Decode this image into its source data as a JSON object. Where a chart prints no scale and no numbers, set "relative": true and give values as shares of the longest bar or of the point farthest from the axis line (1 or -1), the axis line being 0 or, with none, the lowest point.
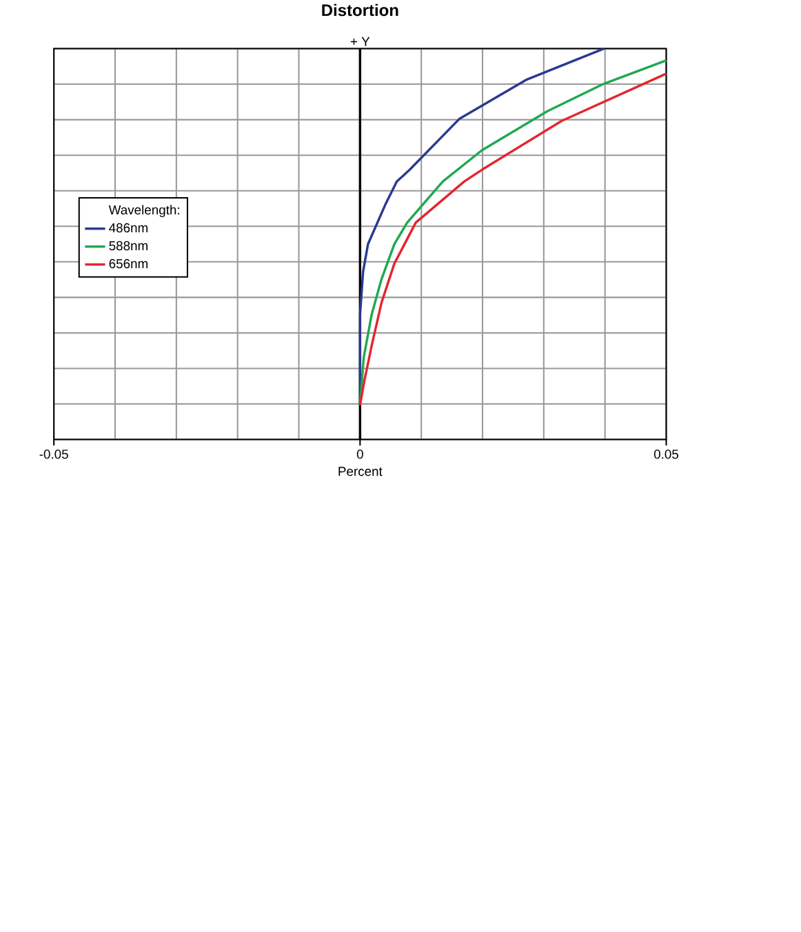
{
  "chart_data": {
    "type": "line",
    "title": "Distortion",
    "xlabel": "Percent",
    "ylabel": "+ Y",
    "legend_title": "Wavelength:",
    "relative": true,
    "xlim": [
      -0.05,
      0.05
    ],
    "xticks": [
      -0.05,
      0,
      0.05
    ],
    "grid": true,
    "legend": "left",
    "marker": "none",
    "line_style": "solid",
    "series": [
      {
        "name": "486nm",
        "color": "#2b3990",
        "x": [
          0,
          0,
          0.0005,
          0.0013,
          0.0041,
          0.006,
          0.0081,
          0.0162,
          0.0271,
          0.0398
        ],
        "values": [
          0.088,
          0.32,
          0.43,
          0.5,
          0.6,
          0.66,
          0.69,
          0.82,
          0.92,
          1
        ]
      },
      {
        "name": "588nm",
        "color": "#1fa84f",
        "x": [
          0,
          0.0006,
          0.0019,
          0.0035,
          0.0056,
          0.0077,
          0.0135,
          0.0199,
          0.0306,
          0.0398,
          0.05
        ],
        "values": [
          0.088,
          0.21,
          0.32,
          0.41,
          0.5,
          0.555,
          0.66,
          0.74,
          0.84,
          0.91,
          0.97
        ]
      },
      {
        "name": "656nm",
        "color": "#e3262e",
        "x": [
          0,
          0.0007,
          0.0019,
          0.0035,
          0.0056,
          0.0091,
          0.017,
          0.0199,
          0.0329,
          0.05
        ],
        "values": [
          0.088,
          0.15,
          0.24,
          0.35,
          0.45,
          0.555,
          0.66,
          0.69,
          0.815,
          0.936
        ]
      }
    ]
  }
}
